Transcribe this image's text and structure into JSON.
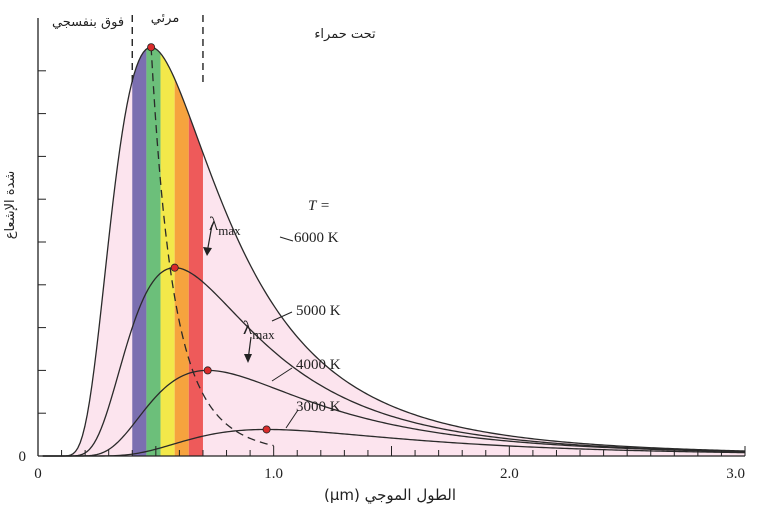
{
  "chart_data": {
    "type": "line",
    "xlabel": "الطول الموجي (μm)",
    "ylabel": "شدة الإشعاع",
    "xlim": [
      0,
      3.0
    ],
    "ylim": [
      0,
      1.0
    ],
    "x_ticks": [
      "0",
      "1.0",
      "2.0",
      "3.0"
    ],
    "y_ticks": [
      "0"
    ],
    "temperature_prefix": "T =",
    "peak_symbol": "λmax",
    "regions": {
      "uv": "فوق بنفسجي",
      "visible": "مرئي",
      "ir": "تحت حمراء"
    },
    "region_bounds_um": [
      0.4,
      0.7
    ],
    "spectrum_colors": [
      "#7b6fb0",
      "#6cbf7a",
      "#f3e84a",
      "#f6a33e",
      "#ee5a5a"
    ],
    "fill_color": "#fce4ee",
    "peak_color": "#d92b2b",
    "series": [
      {
        "name": "6000 K",
        "T": 6000,
        "peak_x": 0.48,
        "peak_y": 0.955
      },
      {
        "name": "5000 K",
        "T": 5000,
        "peak_x": 0.58,
        "peak_y": 0.44
      },
      {
        "name": "4000 K",
        "T": 4000,
        "peak_x": 0.72,
        "peak_y": 0.2
      },
      {
        "name": "3000 K",
        "T": 3000,
        "peak_x": 0.97,
        "peak_y": 0.062
      }
    ]
  }
}
